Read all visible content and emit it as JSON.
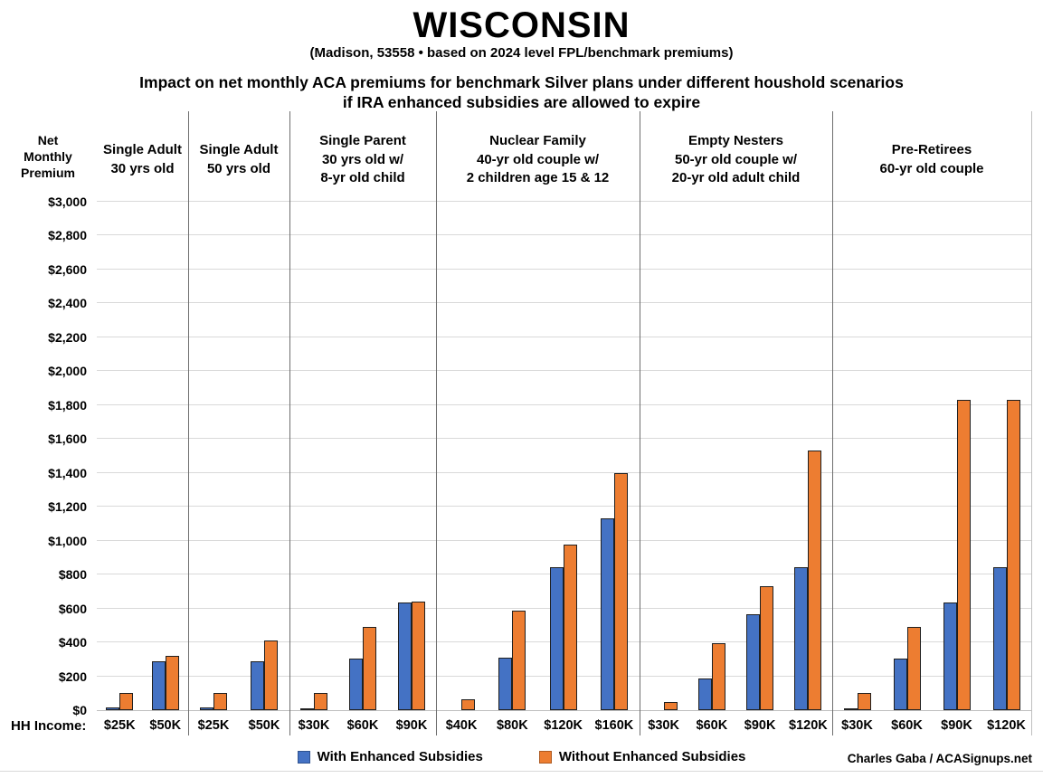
{
  "header": {
    "title": "WISCONSIN",
    "subtitle": "(Madison, 53558 • based on 2024 level FPL/benchmark premiums)",
    "headline_line1": "Impact on net monthly ACA premiums for benchmark Silver plans under different houshold scenarios",
    "headline_line2": "if IRA enhanced subsidies are allowed to expire"
  },
  "axis": {
    "y_title": "Net Monthly Premium",
    "x_title": "HH Income:",
    "y_ticks": [
      "$3,000",
      "$2,800",
      "$2,600",
      "$2,400",
      "$2,200",
      "$2,000",
      "$1,800",
      "$1,600",
      "$1,400",
      "$1,200",
      "$1,000",
      "$800",
      "$600",
      "$400",
      "$200",
      "$0"
    ]
  },
  "legend": {
    "items": [
      {
        "label": "With Enhanced Subsidies",
        "color": "#4472C4"
      },
      {
        "label": "Without Enhanced Subsidies",
        "color": "#ED7D31"
      }
    ]
  },
  "credit": "Charles Gaba / ACASignups.net",
  "chart_data": {
    "type": "bar",
    "title": "Impact on net monthly ACA premiums for benchmark Silver plans under different houshold scenarios if IRA enhanced subsidies are allowed to expire",
    "location": "WISCONSIN (Madison, 53558)",
    "ylabel": "Net Monthly Premium",
    "ylim": [
      0,
      3000
    ],
    "ytick_step": 200,
    "grid": true,
    "legend_position": "bottom",
    "series_names": [
      "With Enhanced Subsidies",
      "Without Enhanced Subsidies"
    ],
    "groups": [
      {
        "label_lines": [
          "Single Adult",
          "30 yrs old"
        ],
        "categories": [
          "$25K",
          "$50K"
        ],
        "series": [
          {
            "name": "With Enhanced Subsidies",
            "values": [
              15,
              290
            ]
          },
          {
            "name": "Without Enhanced Subsidies",
            "values": [
              100,
              320
            ]
          }
        ]
      },
      {
        "label_lines": [
          "Single Adult",
          "50 yrs old"
        ],
        "categories": [
          "$25K",
          "$50K"
        ],
        "series": [
          {
            "name": "With Enhanced Subsidies",
            "values": [
              15,
              290
            ]
          },
          {
            "name": "Without Enhanced Subsidies",
            "values": [
              100,
              410
            ]
          }
        ]
      },
      {
        "label_lines": [
          "Single Parent",
          "30 yrs old w/",
          "8-yr old child"
        ],
        "categories": [
          "$30K",
          "$60K",
          "$90K"
        ],
        "series": [
          {
            "name": "With Enhanced Subsidies",
            "values": [
              5,
              305,
              635
            ]
          },
          {
            "name": "Without Enhanced Subsidies",
            "values": [
              100,
              490,
              640
            ]
          }
        ]
      },
      {
        "label_lines": [
          "Nuclear Family",
          "40-yr old couple w/",
          "2 children age 15 & 12"
        ],
        "categories": [
          "$40K",
          "$80K",
          "$120K",
          "$160K"
        ],
        "series": [
          {
            "name": "With Enhanced Subsidies",
            "values": [
              0,
              310,
              845,
              1130
            ]
          },
          {
            "name": "Without Enhanced Subsidies",
            "values": [
              65,
              585,
              975,
              1400
            ]
          }
        ]
      },
      {
        "label_lines": [
          "Empty Nesters",
          "50-yr old couple w/",
          "20-yr old adult child"
        ],
        "categories": [
          "$30K",
          "$60K",
          "$90K",
          "$120K"
        ],
        "series": [
          {
            "name": "With Enhanced Subsidies",
            "values": [
              0,
              185,
              565,
              845
            ]
          },
          {
            "name": "Without Enhanced Subsidies",
            "values": [
              50,
              395,
              730,
              1530
            ]
          }
        ]
      },
      {
        "label_lines": [
          "Pre-Retirees",
          "60-yr old couple"
        ],
        "categories": [
          "$30K",
          "$60K",
          "$90K",
          "$120K"
        ],
        "series": [
          {
            "name": "With Enhanced Subsidies",
            "values": [
              10,
              305,
              635,
              845
            ]
          },
          {
            "name": "Without Enhanced Subsidies",
            "values": [
              100,
              490,
              1830,
              1830
            ]
          }
        ]
      }
    ]
  }
}
